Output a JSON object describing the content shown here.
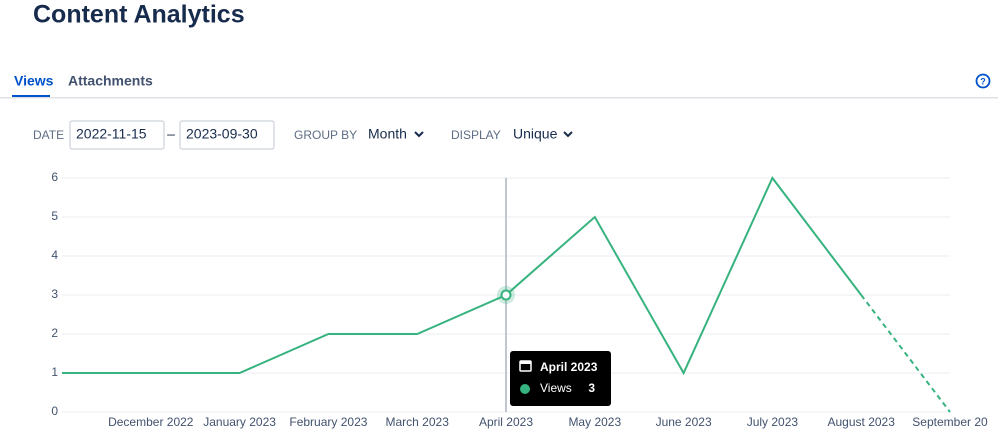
{
  "title": "Content Analytics",
  "tabs": [
    "Views",
    "Attachments"
  ],
  "filters": {
    "date_label": "DATE",
    "date_from": "2022-11-15",
    "date_separator": "–",
    "date_to": "2023-09-30",
    "group_by_label": "GROUP BY",
    "group_by": "Month",
    "display_label": "DISPLAY",
    "display": "Unique"
  },
  "chart_data": {
    "type": "line",
    "categories": [
      null,
      "December 2022",
      "January 2023",
      "February 2023",
      "March 2023",
      "April 2023",
      "May 2023",
      "June 2023",
      "July 2023",
      "August 2023",
      "September 20"
    ],
    "series": [
      {
        "name": "Views",
        "color": "#36b37e",
        "values": [
          1,
          1,
          1,
          2,
          2,
          3,
          5,
          1,
          6,
          3,
          0
        ]
      }
    ],
    "ylim": [
      0,
      6
    ],
    "yticks": [
      0,
      1,
      2,
      3,
      4,
      5,
      6
    ],
    "grid": true
  },
  "tooltip": {
    "title": "April 2023",
    "label": "Views",
    "value": 3
  }
}
